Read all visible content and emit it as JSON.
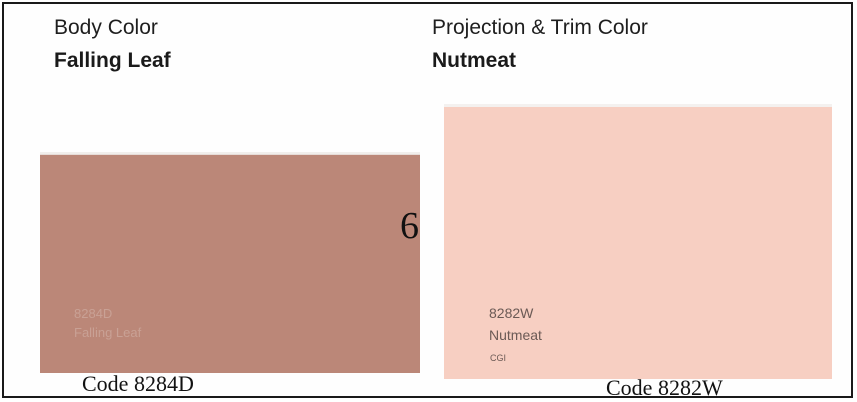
{
  "left": {
    "heading": "Body Color",
    "name": "Falling Leaf",
    "chip_code": "8284D",
    "chip_label": "Falling Leaf",
    "code_caption": "Code 8284D",
    "swatch_color": "#bb8778"
  },
  "right": {
    "heading": "Projection & Trim Color",
    "name": "Nutmeat",
    "chip_code": "8282W",
    "chip_label": "Nutmeat",
    "chip_brand": "CGI",
    "code_caption": "Code 8282W",
    "swatch_color": "#f7cfc2"
  },
  "page_number": "6"
}
